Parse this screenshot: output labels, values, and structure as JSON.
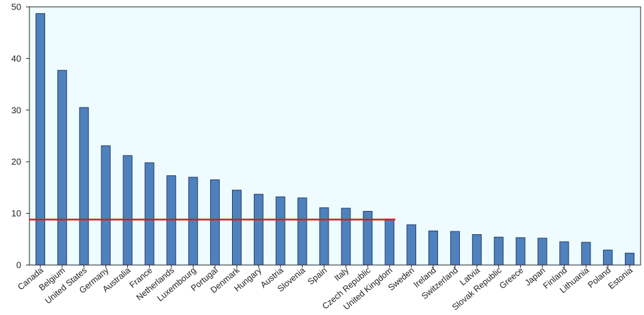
{
  "chart_data": {
    "type": "bar",
    "title": "",
    "xlabel": "",
    "ylabel": "",
    "ylim": [
      0,
      50
    ],
    "yticks": [
      "0",
      "10",
      "20",
      "30",
      "40",
      "50"
    ],
    "grid": false,
    "categories": [
      "Canada",
      "Belgium",
      "United States",
      "Germany",
      "Australia",
      "France",
      "Netherlands",
      "Luxembourg",
      "Portugal",
      "Denmark",
      "Hungary",
      "Austria",
      "Slovenia",
      "Spain",
      "Italy",
      "Czech Republic",
      "United Kingdom",
      "Sweden",
      "Ireland",
      "Switzerland",
      "Latvia",
      "Slovak Republic",
      "Greece",
      "Japan",
      "Finland",
      "Lithuania",
      "Poland",
      "Estonia"
    ],
    "values": [
      48.7,
      37.7,
      30.5,
      23.1,
      21.2,
      19.8,
      17.3,
      17.0,
      16.5,
      14.5,
      13.7,
      13.2,
      13.0,
      11.1,
      11.0,
      10.4,
      8.9,
      7.8,
      6.6,
      6.5,
      5.9,
      5.4,
      5.3,
      5.2,
      4.5,
      4.4,
      2.9,
      2.3
    ],
    "reference_line": {
      "value": 8.8,
      "color": "#e8141b"
    },
    "colors": {
      "bar": "#4f81bd",
      "bar_edge": "#1f3d6b",
      "plot_background": "#eefcff",
      "axis": "#222222"
    }
  }
}
